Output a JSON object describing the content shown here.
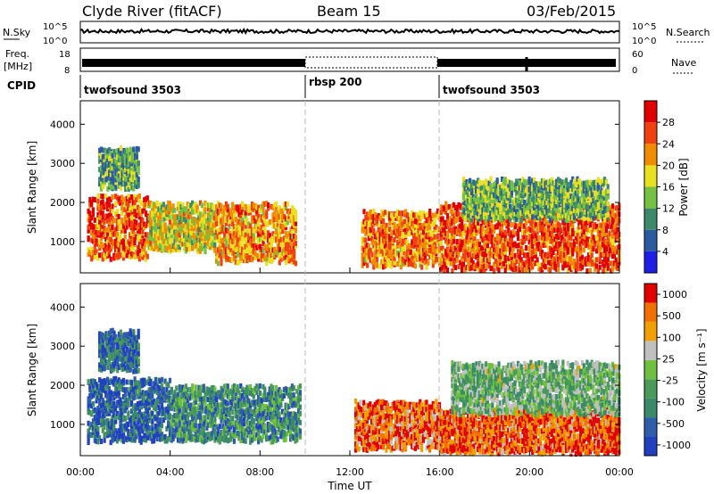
{
  "header": {
    "title": "Clyde River (fitACF)",
    "beam": "Beam 15",
    "date": "03/Feb/2015"
  },
  "noise_panel": {
    "left_label": "N.Sky",
    "left_ticks": [
      "10^5",
      "10^0"
    ],
    "right_ticks": [
      "10^5",
      "10^0"
    ],
    "right_label": "N.Search"
  },
  "freq_panel": {
    "label_line1": "Freq.",
    "label_line2": "[MHz]",
    "left_ticks": [
      "18",
      "8"
    ],
    "right_ticks": [
      "60",
      "0"
    ],
    "right_label": "Nave"
  },
  "cpid": {
    "label": "CPID",
    "segments": [
      {
        "name": "twofsound 3503",
        "start_hour": 0,
        "end_hour": 10
      },
      {
        "name": "rbsp 200",
        "start_hour": 10,
        "end_hour": 16
      },
      {
        "name": "twofsound 3503",
        "start_hour": 16,
        "end_hour": 24
      }
    ]
  },
  "x_axis": {
    "label": "Time UT",
    "ticks": [
      "00:00",
      "04:00",
      "08:00",
      "12:00",
      "16:00",
      "20:00",
      "00:00"
    ]
  },
  "chart_data": [
    {
      "type": "heatmap",
      "title": "Power",
      "ylabel": "Slant Range [km]",
      "xlabel": "Time UT",
      "xlim_hours": [
        0,
        24
      ],
      "ylim": [
        200,
        4600
      ],
      "yticks": [
        1000,
        2000,
        3000,
        4000
      ],
      "colorbar_label": "Power [dB]",
      "colorbar_ticks": [
        "4",
        "8",
        "12",
        "16",
        "20",
        "24",
        "28"
      ],
      "colors": [
        "#1e1ee6",
        "#2a5aa0",
        "#3d8a6a",
        "#76c043",
        "#e8e020",
        "#f08c00",
        "#f04010",
        "#e00000"
      ],
      "regions": [
        {
          "t0": 0.3,
          "t1": 3.0,
          "r0": 600,
          "r1": 2200,
          "level": 0.78
        },
        {
          "t0": 3.0,
          "t1": 6.0,
          "r0": 800,
          "r1": 2000,
          "level": 0.55
        },
        {
          "t0": 6.0,
          "t1": 9.6,
          "r0": 500,
          "r1": 2000,
          "level": 0.7
        },
        {
          "t0": 0.8,
          "t1": 2.6,
          "r0": 2400,
          "r1": 3400,
          "level": 0.35
        },
        {
          "t0": 12.5,
          "t1": 16.0,
          "r0": 400,
          "r1": 1800,
          "level": 0.72
        },
        {
          "t0": 16.0,
          "t1": 24.0,
          "r0": 300,
          "r1": 2000,
          "level": 0.82
        },
        {
          "t0": 17.0,
          "t1": 23.5,
          "r0": 1600,
          "r1": 2600,
          "level": 0.4
        }
      ]
    },
    {
      "type": "heatmap",
      "title": "Velocity",
      "ylabel": "Slant Range [km]",
      "xlabel": "Time UT",
      "xlim_hours": [
        0,
        24
      ],
      "ylim": [
        200,
        4600
      ],
      "yticks": [
        1000,
        2000,
        3000,
        4000
      ],
      "colorbar_label": "Velocity [m s⁻¹]",
      "colorbar_ticks": [
        "1000",
        "500",
        "100",
        "25",
        "-25",
        "-100",
        "-500",
        "-1000"
      ],
      "colors": [
        "#2040c0",
        "#2e5ea8",
        "#3a8a6a",
        "#4a9a5a",
        "#70c040",
        "#c0c0c0",
        "#f0a000",
        "#f07000",
        "#e00000"
      ],
      "regions": [
        {
          "t0": 0.3,
          "t1": 4.0,
          "r0": 600,
          "r1": 2200,
          "level": 0.15
        },
        {
          "t0": 4.0,
          "t1": 9.8,
          "r0": 600,
          "r1": 2000,
          "level": 0.3
        },
        {
          "t0": 0.8,
          "t1": 2.6,
          "r0": 2400,
          "r1": 3400,
          "level": 0.2
        },
        {
          "t0": 12.2,
          "t1": 16.0,
          "r0": 400,
          "r1": 1600,
          "level": 0.82
        },
        {
          "t0": 16.0,
          "t1": 24.0,
          "r0": 300,
          "r1": 1400,
          "level": 0.85
        },
        {
          "t0": 16.5,
          "t1": 24.0,
          "r0": 1300,
          "r1": 2600,
          "level": 0.45
        }
      ]
    }
  ]
}
